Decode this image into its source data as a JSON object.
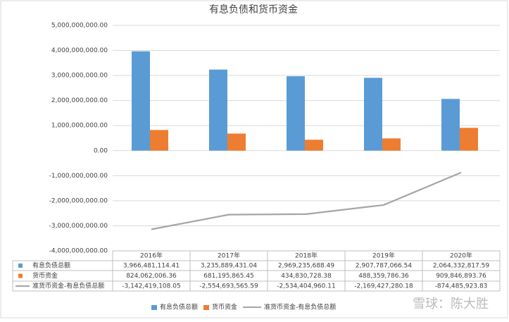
{
  "chart_data": {
    "type": "bar-line",
    "title": "有息负债和货币资金",
    "categories": [
      "2016年",
      "2017年",
      "2018年",
      "2019年",
      "2020年"
    ],
    "series": [
      {
        "name": "有息负债总额",
        "type": "bar",
        "color": "#5b9bd5",
        "values": [
          3966481114.41,
          3235889431.04,
          2969235688.49,
          2907787066.54,
          2064332817.59
        ],
        "value_labels": [
          "3,966,481,114.41",
          "3,235,889,431.04",
          "2,969,235,688.49",
          "2,907,787,066.54",
          "2,064,332,817.59"
        ]
      },
      {
        "name": "货币资金",
        "type": "bar",
        "color": "#ed7d31",
        "values": [
          824062006.36,
          681195865.45,
          434830728.38,
          488359786.36,
          909846893.76
        ],
        "value_labels": [
          "824,062,006.36",
          "681,195,865.45",
          "434,830,728.38",
          "488,359,786.36",
          "909,846,893.76"
        ]
      },
      {
        "name": "准货币资金-有息负债总额",
        "type": "line",
        "color": "#a5a5a5",
        "values": [
          -3142419108.05,
          -2554693565.59,
          -2534404960.11,
          -2169427280.18,
          -874485923.83
        ],
        "value_labels": [
          "-3,142,419,108.05",
          "-2,554,693,565.59",
          "-2,534,404,960.11",
          "-2,169,427,280.18",
          "-874,485,923.83"
        ]
      }
    ],
    "ylim": [
      -4000000000,
      5000000000
    ],
    "yticks": [
      {
        "value": -4000000000,
        "label": "-4,000,000,000.00"
      },
      {
        "value": -3000000000,
        "label": "-3,000,000,000.00"
      },
      {
        "value": -2000000000,
        "label": "-2,000,000,000.00"
      },
      {
        "value": -1000000000,
        "label": "-1,000,000,000.00"
      },
      {
        "value": 0,
        "label": "0.00"
      },
      {
        "value": 1000000000,
        "label": "1,000,000,000.00"
      },
      {
        "value": 2000000000,
        "label": "2,000,000,000.00"
      },
      {
        "value": 3000000000,
        "label": "3,000,000,000.00"
      },
      {
        "value": 4000000000,
        "label": "4,000,000,000.00"
      },
      {
        "value": 5000000000,
        "label": "5,000,000,000.00"
      }
    ],
    "grid": true,
    "legend": "bottom",
    "watermark": "雪球：陈大胜"
  }
}
